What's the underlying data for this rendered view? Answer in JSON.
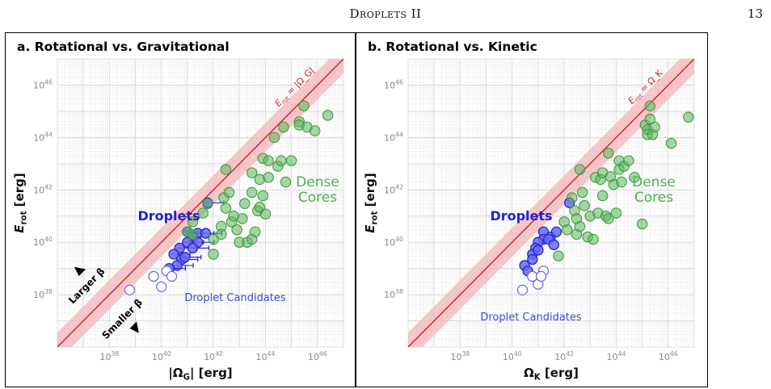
{
  "header": {
    "title": "Droplets II",
    "page_number": "13"
  },
  "chart_data": [
    {
      "type": "scatter",
      "title": "a. Rotational vs. Gravitational",
      "xlabel": "|Ω_G| [erg]",
      "ylabel": "E_rot [erg]",
      "xscale": "log",
      "yscale": "log",
      "xlim": [
        1e+36,
        1e+47
      ],
      "ylim": [
        1e+36,
        1e+47
      ],
      "xticks": [
        "10^38",
        "10^40",
        "10^42",
        "10^44",
        "10^46"
      ],
      "yticks": [
        "10^38",
        "10^40",
        "10^42",
        "10^44",
        "10^46"
      ],
      "grid": true,
      "equality_line_label": "E_rot = |Ω_G|",
      "annotations": {
        "larger_beta": "Larger β",
        "smaller_beta": "Smaller β"
      },
      "series": [
        {
          "name": "Droplets",
          "label": "Droplets",
          "color": "#2222dd",
          "marker": "filled-circle-with-xerr",
          "points": [
            [
              1e+41,
              2.5e+40
            ],
            [
              2.5e+41,
              2.2e+40
            ],
            [
              1.6e+41,
              1.6e+40
            ],
            [
              1e+41,
              1e+40
            ],
            [
              2.5e+41,
              1e+40
            ],
            [
              5e+41,
              2.2e+40
            ],
            [
              5e+40,
              6e+39
            ],
            [
              1.6e+41,
              6e+39
            ],
            [
              3e+40,
              3.5e+39
            ],
            [
              6e+40,
              2.2e+39
            ],
            [
              4e+40,
              1.3e+39
            ],
            [
              2e+40,
              1e+39
            ],
            [
              6e+41,
              3.2e+41
            ],
            [
              8e+40,
              2.7e+39
            ]
          ]
        },
        {
          "name": "Droplet Candidates",
          "label": "Droplet Candidates",
          "color": "#6666ee",
          "marker": "open-circle",
          "points": [
            [
              6e+38,
              1.5e+38
            ],
            [
              5e+39,
              5e+38
            ],
            [
              1e+40,
              2e+38
            ],
            [
              1.6e+40,
              8e+38
            ],
            [
              2.5e+40,
              5e+38
            ]
          ]
        },
        {
          "name": "Dense Cores",
          "label": "Dense Cores",
          "color": "#5cb85c",
          "marker": "filled-circle",
          "points": [
            [
              1e+41,
              2.5e+40
            ],
            [
              1.6e+41,
              6e+40
            ],
            [
              1.6e+41,
              2e+40
            ],
            [
              4e+41,
              1.3e+41
            ],
            [
              6e+41,
              3e+41
            ],
            [
              1e+42,
              1.3e+40
            ],
            [
              1e+42,
              3.5e+39
            ],
            [
              2e+42,
              4e+40
            ],
            [
              2e+42,
              2e+40
            ],
            [
              2.5e+42,
              5e+41
            ],
            [
              3e+42,
              2e+41
            ],
            [
              3e+42,
              6e+42
            ],
            [
              4e+42,
              8e+41
            ],
            [
              5e+42,
              6e+40
            ],
            [
              6e+42,
              1e+41
            ],
            [
              8e+42,
              3e+40
            ],
            [
              1e+43,
              1e+40
            ],
            [
              1.3e+43,
              8e+40
            ],
            [
              1.6e+43,
              3e+41
            ],
            [
              2e+43,
              1e+40
            ],
            [
              3e+43,
              1.3e+40
            ],
            [
              3e+43,
              8e+41
            ],
            [
              3e+43,
              4.5e+42
            ],
            [
              4e+43,
              2.5e+40
            ],
            [
              5e+43,
              1.6e+41
            ],
            [
              6e+43,
              2.2e+41
            ],
            [
              6e+43,
              2.5e+42
            ],
            [
              8e+43,
              1.6e+43
            ],
            [
              8e+43,
              6e+41
            ],
            [
              1e+44,
              1.2e+41
            ],
            [
              1.3e+44,
              1.3e+43
            ],
            [
              1.3e+44,
              3e+42
            ],
            [
              2.2e+44,
              1e+44
            ],
            [
              3e+44,
              8e+42
            ],
            [
              4e+44,
              1.3e+43
            ],
            [
              5e+44,
              2.5e+44
            ],
            [
              6e+44,
              2e+42
            ],
            [
              1e+45,
              1.3e+43
            ],
            [
              2e+45,
              4e+44
            ],
            [
              2e+45,
              3e+44
            ],
            [
              3e+45,
              1.6e+45
            ],
            [
              4e+45,
              2.5e+44
            ],
            [
              8e+45,
              1.8e+44
            ],
            [
              2.5e+46,
              7e+44
            ]
          ]
        }
      ],
      "series_labels": {
        "droplets": "Droplets",
        "candidates": "Droplet Candidates",
        "dense_cores_line1": "Dense",
        "dense_cores_line2": "Cores"
      }
    },
    {
      "type": "scatter",
      "title": "b. Rotational vs. Kinetic",
      "xlabel": "Ω_K [erg]",
      "ylabel": "E_rot [erg]",
      "xscale": "log",
      "yscale": "log",
      "xlim": [
        1e+36,
        1e+47
      ],
      "ylim": [
        1e+36,
        1e+47
      ],
      "xticks": [
        "10^38",
        "10^40",
        "10^42",
        "10^44",
        "10^46"
      ],
      "yticks": [
        "10^38",
        "10^40",
        "10^42",
        "10^44",
        "10^46"
      ],
      "grid": true,
      "equality_line_label": "E_rot = Ω_K",
      "series": [
        {
          "name": "Droplets",
          "label": "Droplets",
          "color": "#2222dd",
          "marker": "filled-circle",
          "points": [
            [
              1.6e+41,
              2.5e+40
            ],
            [
              1.6e+41,
              1.3e+40
            ],
            [
              3e+41,
              1.6e+40
            ],
            [
              1e+41,
              1e+40
            ],
            [
              2.5e+41,
              1.3e+40
            ],
            [
              5e+41,
              2.5e+40
            ],
            [
              8e+40,
              6e+39
            ],
            [
              4e+41,
              8e+39
            ],
            [
              6e+40,
              3.5e+39
            ],
            [
              6e+40,
              2.2e+39
            ],
            [
              3e+40,
              1.3e+39
            ],
            [
              4e+40,
              8e+38
            ],
            [
              1.6e+42,
              3.2e+41
            ],
            [
              1e+41,
              5e+39
            ]
          ]
        },
        {
          "name": "Droplet Candidates",
          "label": "Droplet Candidates",
          "color": "#6666ee",
          "marker": "open-circle",
          "points": [
            [
              2.5e+40,
              1.5e+38
            ],
            [
              6e+40,
              5e+38
            ],
            [
              1e+41,
              2.5e+38
            ],
            [
              1.6e+41,
              8e+38
            ],
            [
              1.3e+41,
              5e+38
            ]
          ]
        },
        {
          "name": "Dense Cores",
          "label": "Dense Cores",
          "color": "#5cb85c",
          "marker": "filled-circle",
          "points": [
            [
              6e+41,
              3e+39
            ],
            [
              1e+42,
              6e+40
            ],
            [
              1.3e+42,
              3e+40
            ],
            [
              2e+42,
              5e+41
            ],
            [
              2.5e+42,
              1.6e+41
            ],
            [
              3e+42,
              2e+40
            ],
            [
              3e+42,
              8e+40
            ],
            [
              4e+42,
              6e+42
            ],
            [
              4e+42,
              4e+40
            ],
            [
              5e+42,
              8e+41
            ],
            [
              6e+42,
              2.5e+41
            ],
            [
              8e+42,
              1.6e+40
            ],
            [
              1e+43,
              1e+41
            ],
            [
              1.3e+43,
              1.3e+40
            ],
            [
              1.6e+43,
              3e+42
            ],
            [
              2e+43,
              1.3e+41
            ],
            [
              2.5e+43,
              2.5e+42
            ],
            [
              3e+43,
              6e+41
            ],
            [
              3e+43,
              4.5e+42
            ],
            [
              4e+43,
              1e+41
            ],
            [
              5e+43,
              2.5e+43
            ],
            [
              5e+43,
              8e+40
            ],
            [
              6e+43,
              3.2e+42
            ],
            [
              8e+43,
              1.6e+42
            ],
            [
              1e+44,
              1.3e+41
            ],
            [
              1.3e+44,
              1.3e+43
            ],
            [
              1.3e+44,
              6e+42
            ],
            [
              1.6e+44,
              2e+42
            ],
            [
              2e+44,
              8e+42
            ],
            [
              3e+44,
              1.3e+43
            ],
            [
              5e+44,
              3e+42
            ],
            [
              1e+45,
              5e+40
            ],
            [
              1.3e+45,
              3e+44
            ],
            [
              1.6e+45,
              2e+44
            ],
            [
              1.6e+45,
              1.3e+44
            ],
            [
              2e+45,
              5e+44
            ],
            [
              2e+45,
              1.6e+45
            ],
            [
              2.5e+45,
              1.3e+44
            ],
            [
              3e+45,
              2.5e+44
            ],
            [
              1.3e+46,
              6e+43
            ],
            [
              6e+46,
              6e+44
            ]
          ]
        }
      ],
      "series_labels": {
        "droplets": "Droplets",
        "candidates": "Droplet Candidates",
        "dense_cores_line1": "Dense",
        "dense_cores_line2": "Cores"
      }
    }
  ]
}
